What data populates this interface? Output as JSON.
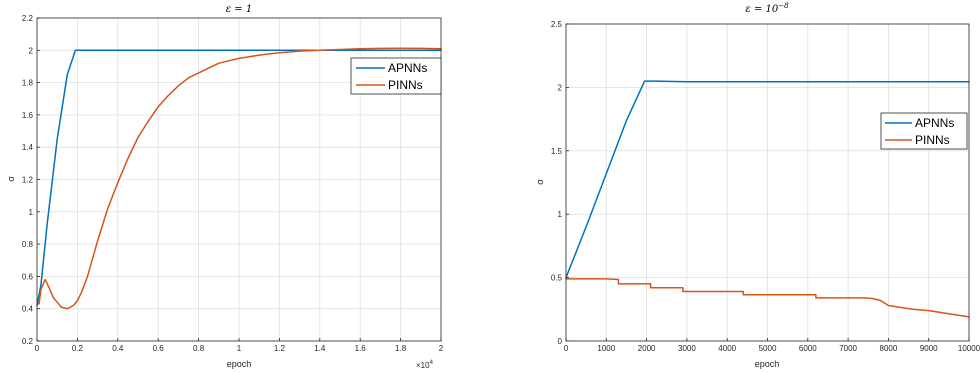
{
  "chart_data": [
    {
      "type": "line",
      "title": "ε = 1",
      "xlabel": "epoch",
      "ylabel": "σ",
      "x_multiplier_label": "×10",
      "x_multiplier_exp": "4",
      "xlim": [
        0,
        2
      ],
      "ylim": [
        0.2,
        2.2
      ],
      "xticks": [
        0,
        0.2,
        0.4,
        0.6,
        0.8,
        1,
        1.2,
        1.4,
        1.6,
        1.8,
        2
      ],
      "xtick_labels": [
        "0",
        "0.2",
        "0.4",
        "0.6",
        "0.8",
        "1",
        "1.2",
        "1.4",
        "1.6",
        "1.8",
        "2"
      ],
      "yticks": [
        0.2,
        0.4,
        0.6,
        0.8,
        1,
        1.2,
        1.4,
        1.6,
        1.8,
        2,
        2.2
      ],
      "ytick_labels": [
        "0.2",
        "0.4",
        "0.6",
        "0.8",
        "1",
        "1.2",
        "1.4",
        "1.6",
        "1.8",
        "2",
        "2.2"
      ],
      "grid": true,
      "legend_position": "top-right",
      "series": [
        {
          "name": "APNNs",
          "color": "#0072BD",
          "x": [
            0,
            0.02,
            0.05,
            0.1,
            0.15,
            0.19,
            0.3,
            0.6,
            1.0,
            1.4,
            1.8,
            2.0
          ],
          "y": [
            0.42,
            0.55,
            0.92,
            1.45,
            1.85,
            2.0,
            2.0,
            2.0,
            2.0,
            2.0,
            2.0,
            2.0
          ]
        },
        {
          "name": "PINNs",
          "color": "#D95319",
          "x": [
            0,
            0.01,
            0.02,
            0.04,
            0.06,
            0.08,
            0.1,
            0.12,
            0.15,
            0.18,
            0.2,
            0.22,
            0.25,
            0.3,
            0.35,
            0.4,
            0.45,
            0.5,
            0.55,
            0.6,
            0.65,
            0.7,
            0.75,
            0.8,
            0.85,
            0.9,
            0.95,
            1.0,
            1.05,
            1.1,
            1.15,
            1.2,
            1.3,
            1.4,
            1.5,
            1.6,
            1.7,
            1.8,
            1.9,
            2.0
          ],
          "y": [
            0.45,
            0.43,
            0.52,
            0.58,
            0.53,
            0.47,
            0.44,
            0.41,
            0.4,
            0.42,
            0.45,
            0.5,
            0.6,
            0.82,
            1.02,
            1.18,
            1.33,
            1.46,
            1.56,
            1.65,
            1.72,
            1.78,
            1.83,
            1.86,
            1.89,
            1.92,
            1.935,
            1.95,
            1.96,
            1.97,
            1.978,
            1.985,
            1.995,
            2.0,
            2.005,
            2.01,
            2.012,
            2.013,
            2.012,
            2.01
          ]
        }
      ]
    },
    {
      "type": "line",
      "title": "ε = 10",
      "title_exponent": "−8",
      "xlabel": "epoch",
      "ylabel": "σ",
      "xlim": [
        0,
        10000
      ],
      "ylim": [
        0,
        2.5
      ],
      "xticks": [
        0,
        1000,
        2000,
        3000,
        4000,
        5000,
        6000,
        7000,
        8000,
        9000,
        10000
      ],
      "xtick_labels": [
        "0",
        "1000",
        "2000",
        "3000",
        "4000",
        "5000",
        "6000",
        "7000",
        "8000",
        "9000",
        "10000"
      ],
      "yticks": [
        0,
        0.5,
        1,
        1.5,
        2,
        2.5
      ],
      "ytick_labels": [
        "0",
        "0.5",
        "1",
        "1.5",
        "2",
        "2.5"
      ],
      "grid": true,
      "legend_position": "top-right",
      "series": [
        {
          "name": "APNNs",
          "color": "#0072BD",
          "x": [
            0,
            500,
            1000,
            1500,
            1950,
            2200,
            3000,
            5000,
            7000,
            10000
          ],
          "y": [
            0.5,
            0.9,
            1.32,
            1.74,
            2.05,
            2.05,
            2.045,
            2.045,
            2.045,
            2.045
          ],
          "step": false
        },
        {
          "name": "PINNs",
          "color": "#D95319",
          "x": [
            0,
            500,
            1000,
            1300,
            1300,
            2100,
            2100,
            2900,
            2900,
            4400,
            4400,
            6200,
            6200,
            7400,
            7600,
            7800,
            8000,
            8300,
            8600,
            9000,
            9500,
            10000
          ],
          "y": [
            0.49,
            0.49,
            0.49,
            0.485,
            0.45,
            0.45,
            0.42,
            0.42,
            0.39,
            0.39,
            0.365,
            0.365,
            0.34,
            0.34,
            0.335,
            0.32,
            0.28,
            0.265,
            0.25,
            0.24,
            0.215,
            0.19
          ]
        }
      ]
    }
  ]
}
